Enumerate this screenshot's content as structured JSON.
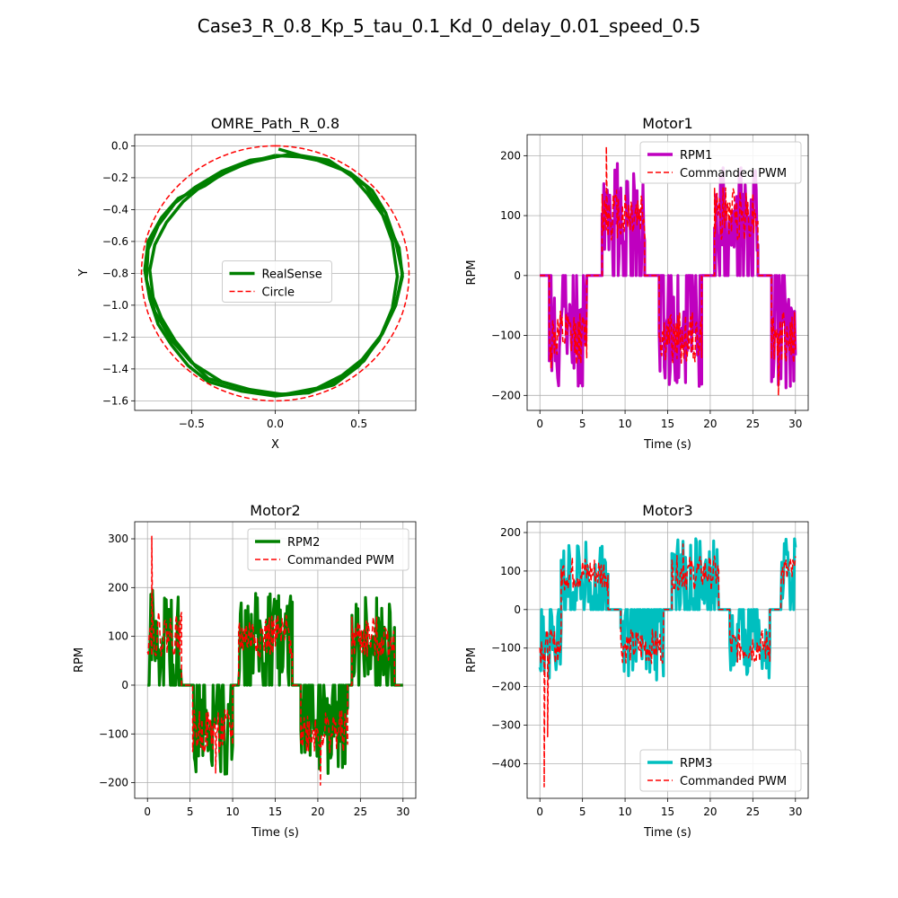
{
  "suptitle": "Case3_R_0.8_Kp_5_tau_0.1_Kd_0_delay_0.01_speed_0.5",
  "colors": {
    "realsense": "#008000",
    "circle": "#ff0000",
    "rpm1": "#bf00bf",
    "rpm2": "#008000",
    "rpm3": "#00bfbf",
    "pwm": "#ff0000",
    "grid": "#b0b0b0"
  },
  "chart_data": [
    {
      "id": "path",
      "type": "line",
      "title": "OMRE_Path_R_0.8",
      "xlabel": "X",
      "ylabel": "Y",
      "xlim": [
        -0.84,
        0.84
      ],
      "ylim": [
        -1.66,
        0.07
      ],
      "xticks": [
        -0.5,
        0.0,
        0.5
      ],
      "xtick_labels": [
        "−0.5",
        "0.0",
        "0.5"
      ],
      "yticks": [
        0.0,
        -0.2,
        -0.4,
        -0.6,
        -0.8,
        -1.0,
        -1.2,
        -1.4,
        -1.6
      ],
      "ytick_labels": [
        "0.0",
        "−0.2",
        "−0.4",
        "−0.6",
        "−0.8",
        "−1.0",
        "−1.2",
        "−1.4",
        "−1.6"
      ],
      "legend": {
        "placement": "center",
        "entries": [
          "RealSense",
          "Circle"
        ]
      },
      "grid": true,
      "circle": {
        "cx": 0.0,
        "cy": -0.8,
        "r": 0.8
      },
      "series": [
        {
          "name": "RealSense",
          "points": [
            [
              0.0,
              -0.06
            ],
            [
              -0.15,
              -0.1
            ],
            [
              -0.3,
              -0.17
            ],
            [
              -0.45,
              -0.26
            ],
            [
              -0.55,
              -0.35
            ],
            [
              -0.65,
              -0.48
            ],
            [
              -0.72,
              -0.62
            ],
            [
              -0.75,
              -0.78
            ],
            [
              -0.73,
              -0.95
            ],
            [
              -0.68,
              -1.08
            ],
            [
              -0.6,
              -1.22
            ],
            [
              -0.48,
              -1.38
            ],
            [
              -0.4,
              -1.46
            ],
            [
              -0.2,
              -1.52
            ],
            [
              0.0,
              -1.56
            ],
            [
              0.2,
              -1.55
            ],
            [
              0.38,
              -1.47
            ],
            [
              0.53,
              -1.35
            ],
            [
              0.64,
              -1.18
            ],
            [
              0.72,
              -1.0
            ],
            [
              0.76,
              -0.8
            ],
            [
              0.72,
              -0.6
            ],
            [
              0.66,
              -0.42
            ],
            [
              0.58,
              -0.28
            ],
            [
              0.45,
              -0.17
            ],
            [
              0.3,
              -0.1
            ],
            [
              0.15,
              -0.07
            ],
            [
              0.0,
              -0.06
            ]
          ]
        },
        {
          "name": "RealSense",
          "points": [
            [
              0.0,
              -0.07
            ],
            [
              -0.13,
              -0.1
            ],
            [
              -0.28,
              -0.15
            ],
            [
              -0.42,
              -0.25
            ],
            [
              -0.58,
              -0.33
            ],
            [
              -0.68,
              -0.45
            ],
            [
              -0.76,
              -0.6
            ],
            [
              -0.78,
              -0.78
            ],
            [
              -0.75,
              -0.96
            ],
            [
              -0.7,
              -1.12
            ],
            [
              -0.62,
              -1.25
            ],
            [
              -0.52,
              -1.38
            ],
            [
              -0.4,
              -1.48
            ],
            [
              -0.2,
              -1.54
            ],
            [
              0.0,
              -1.57
            ],
            [
              0.18,
              -1.55
            ],
            [
              0.35,
              -1.5
            ],
            [
              0.5,
              -1.38
            ],
            [
              0.62,
              -1.22
            ],
            [
              0.7,
              -1.02
            ],
            [
              0.73,
              -0.82
            ],
            [
              0.7,
              -0.6
            ],
            [
              0.63,
              -0.4
            ],
            [
              0.54,
              -0.25
            ],
            [
              0.4,
              -0.15
            ],
            [
              0.25,
              -0.09
            ],
            [
              0.1,
              -0.05
            ],
            [
              0.0,
              -0.07
            ]
          ]
        },
        {
          "name": "RealSense",
          "points": [
            [
              0.02,
              -0.02
            ],
            [
              0.15,
              -0.06
            ],
            [
              0.32,
              -0.09
            ],
            [
              0.45,
              -0.18
            ],
            [
              0.55,
              -0.3
            ],
            [
              0.66,
              -0.46
            ],
            [
              0.74,
              -0.64
            ],
            [
              0.76,
              -0.82
            ],
            [
              0.72,
              -1.0
            ],
            [
              0.64,
              -1.18
            ],
            [
              0.52,
              -1.34
            ],
            [
              0.4,
              -1.44
            ],
            [
              0.25,
              -1.52
            ],
            [
              0.05,
              -1.56
            ],
            [
              -0.15,
              -1.53
            ],
            [
              -0.32,
              -1.48
            ],
            [
              -0.5,
              -1.36
            ],
            [
              -0.62,
              -1.22
            ],
            [
              -0.72,
              -1.04
            ],
            [
              -0.77,
              -0.84
            ],
            [
              -0.76,
              -0.65
            ],
            [
              -0.7,
              -0.5
            ],
            [
              -0.6,
              -0.36
            ],
            [
              -0.48,
              -0.26
            ],
            [
              -0.32,
              -0.16
            ],
            [
              -0.15,
              -0.09
            ],
            [
              0.0,
              -0.07
            ]
          ]
        }
      ]
    },
    {
      "id": "motor1",
      "type": "line",
      "title": "Motor1",
      "xlabel": "Time (s)",
      "ylabel": "RPM",
      "xlim": [
        -1.5,
        31.5
      ],
      "ylim": [
        -225,
        235
      ],
      "xticks": [
        0,
        5,
        10,
        15,
        20,
        25,
        30
      ],
      "yticks": [
        -200,
        -100,
        0,
        100,
        200
      ],
      "ytick_labels": [
        "−200",
        "−100",
        "0",
        "100",
        "200"
      ],
      "legend": {
        "placement": "upper right",
        "entries": [
          "RPM1",
          "Commanded PWM"
        ]
      },
      "grid": true,
      "segments": [
        {
          "t0": 0.0,
          "t1": 1.1,
          "target": 0
        },
        {
          "t0": 1.1,
          "t1": 5.5,
          "target": -110
        },
        {
          "t0": 5.5,
          "t1": 7.3,
          "target": 0
        },
        {
          "t0": 7.3,
          "t1": 12.3,
          "target": 110
        },
        {
          "t0": 12.3,
          "t1": 14.0,
          "target": 0
        },
        {
          "t0": 14.0,
          "t1": 19.0,
          "target": -110
        },
        {
          "t0": 19.0,
          "t1": 20.5,
          "target": 0
        },
        {
          "t0": 20.5,
          "t1": 25.6,
          "target": 110
        },
        {
          "t0": 25.6,
          "t1": 27.2,
          "target": 0
        },
        {
          "t0": 27.2,
          "t1": 30.0,
          "target": -110
        }
      ],
      "series": [
        {
          "name": "RPM1",
          "color_key": "rpm1",
          "kind": "rpm",
          "amp": 80,
          "seed": 11
        },
        {
          "name": "Commanded PWM",
          "color_key": "pwm",
          "kind": "pwm",
          "amp": 45,
          "seed": 12,
          "spikes": [
            [
              7.8,
              215
            ],
            [
              28.0,
              -200
            ],
            [
              1.3,
              -155
            ]
          ]
        }
      ]
    },
    {
      "id": "motor2",
      "type": "line",
      "title": "Motor2",
      "xlabel": "Time (s)",
      "ylabel": "RPM",
      "xlim": [
        -1.5,
        31.5
      ],
      "ylim": [
        -232,
        335
      ],
      "xticks": [
        0,
        5,
        10,
        15,
        20,
        25,
        30
      ],
      "yticks": [
        -200,
        -100,
        0,
        100,
        200,
        300
      ],
      "ytick_labels": [
        "−200",
        "−100",
        "0",
        "100",
        "200",
        "300"
      ],
      "legend": {
        "placement": "upper right",
        "entries": [
          "RPM2",
          "Commanded PWM"
        ]
      },
      "grid": true,
      "segments": [
        {
          "t0": 0.0,
          "t1": 4.0,
          "target": 110
        },
        {
          "t0": 4.0,
          "t1": 5.3,
          "target": 0
        },
        {
          "t0": 5.3,
          "t1": 10.0,
          "target": -100
        },
        {
          "t0": 10.0,
          "t1": 10.7,
          "target": 0
        },
        {
          "t0": 10.7,
          "t1": 17.0,
          "target": 105
        },
        {
          "t0": 17.0,
          "t1": 18.0,
          "target": 0
        },
        {
          "t0": 18.0,
          "t1": 23.5,
          "target": -100
        },
        {
          "t0": 23.5,
          "t1": 24.0,
          "target": 0
        },
        {
          "t0": 24.0,
          "t1": 29.0,
          "target": 100
        },
        {
          "t0": 29.0,
          "t1": 30.0,
          "target": 0
        }
      ],
      "series": [
        {
          "name": "RPM2",
          "color_key": "rpm2",
          "kind": "rpm",
          "amp": 85,
          "seed": 21
        },
        {
          "name": "Commanded PWM",
          "color_key": "pwm",
          "kind": "pwm",
          "amp": 45,
          "seed": 22,
          "spikes": [
            [
              0.5,
              305
            ],
            [
              20.3,
              -205
            ],
            [
              8.0,
              -180
            ]
          ]
        }
      ]
    },
    {
      "id": "motor3",
      "type": "line",
      "title": "Motor3",
      "xlabel": "Time (s)",
      "ylabel": "RPM",
      "xlim": [
        -1.5,
        31.5
      ],
      "ylim": [
        -490,
        228
      ],
      "xticks": [
        0,
        5,
        10,
        15,
        20,
        25,
        30
      ],
      "yticks": [
        -400,
        -300,
        -200,
        -100,
        0,
        100,
        200
      ],
      "ytick_labels": [
        "−400",
        "−300",
        "−200",
        "−100",
        "0",
        "100",
        "200"
      ],
      "legend": {
        "placement": "lower right",
        "entries": [
          "RPM3",
          "Commanded PWM"
        ]
      },
      "grid": true,
      "segments": [
        {
          "t0": 0.0,
          "t1": 2.5,
          "target": -100
        },
        {
          "t0": 2.5,
          "t1": 8.0,
          "target": 100
        },
        {
          "t0": 8.0,
          "t1": 9.5,
          "target": 0
        },
        {
          "t0": 9.5,
          "t1": 14.5,
          "target": -100
        },
        {
          "t0": 14.5,
          "t1": 15.5,
          "target": 0
        },
        {
          "t0": 15.5,
          "t1": 21.0,
          "target": 100
        },
        {
          "t0": 21.0,
          "t1": 22.3,
          "target": 0
        },
        {
          "t0": 22.3,
          "t1": 27.0,
          "target": -100
        },
        {
          "t0": 27.0,
          "t1": 28.3,
          "target": 0
        },
        {
          "t0": 28.3,
          "t1": 30.0,
          "target": 100
        }
      ],
      "series": [
        {
          "name": "RPM3",
          "color_key": "rpm3",
          "kind": "rpm",
          "amp": 85,
          "seed": 31
        },
        {
          "name": "Commanded PWM",
          "color_key": "pwm",
          "kind": "pwm",
          "amp": 45,
          "seed": 32,
          "spikes": [
            [
              0.5,
              -460
            ],
            [
              16.8,
              170
            ],
            [
              0.9,
              -330
            ]
          ]
        }
      ]
    }
  ]
}
